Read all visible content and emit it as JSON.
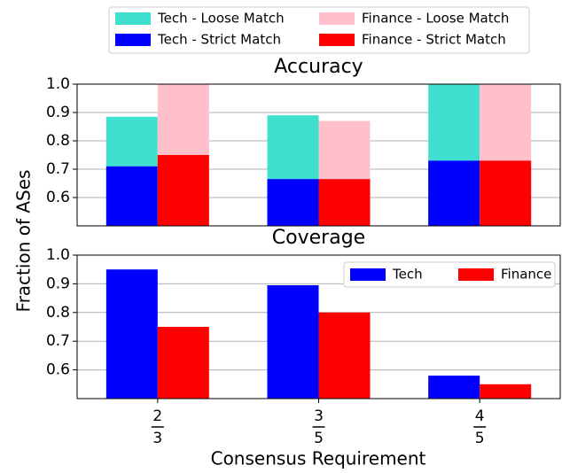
{
  "figure": {
    "ylabel": "Fraction of ASes",
    "xlabel": "Consensus Requirement"
  },
  "chart_data": [
    {
      "type": "bar",
      "barmode": "overlay",
      "title": "Accuracy",
      "categories": [
        {
          "numerator": "2",
          "denominator": "3"
        },
        {
          "numerator": "3",
          "denominator": "5"
        },
        {
          "numerator": "4",
          "denominator": "5"
        }
      ],
      "series": [
        {
          "name": "Tech - Loose Match",
          "color": "#40e0d0",
          "values": [
            0.885,
            0.89,
            1.0
          ]
        },
        {
          "name": "Tech - Strict Match",
          "color": "#0000ff",
          "values": [
            0.71,
            0.665,
            0.73
          ]
        },
        {
          "name": "Finance - Loose Match",
          "color": "#ffc0cb",
          "values": [
            1.0,
            0.87,
            1.0
          ]
        },
        {
          "name": "Finance - Strict Match",
          "color": "#ff0000",
          "values": [
            0.75,
            0.665,
            0.73
          ]
        }
      ],
      "ylim": [
        0.5,
        1.0
      ],
      "yticks": [
        0.6,
        0.7,
        0.8,
        0.9,
        {
          "value": 1.0,
          "label": "1.0"
        }
      ],
      "grid": true,
      "legend": "outside-top"
    },
    {
      "type": "bar",
      "barmode": "group",
      "title": "Coverage",
      "categories": [
        {
          "numerator": "2",
          "denominator": "3"
        },
        {
          "numerator": "3",
          "denominator": "5"
        },
        {
          "numerator": "4",
          "denominator": "5"
        }
      ],
      "series": [
        {
          "name": "Tech",
          "color": "#0000ff",
          "values": [
            0.95,
            0.895,
            0.58
          ]
        },
        {
          "name": "Finance",
          "color": "#ff0000",
          "values": [
            0.75,
            0.8,
            0.55
          ]
        }
      ],
      "ylim": [
        0.5,
        1.0
      ],
      "yticks": [
        0.6,
        0.7,
        0.8,
        0.9,
        {
          "value": 1.0,
          "label": "1.0"
        }
      ],
      "grid": true,
      "legend": "upper right"
    }
  ]
}
